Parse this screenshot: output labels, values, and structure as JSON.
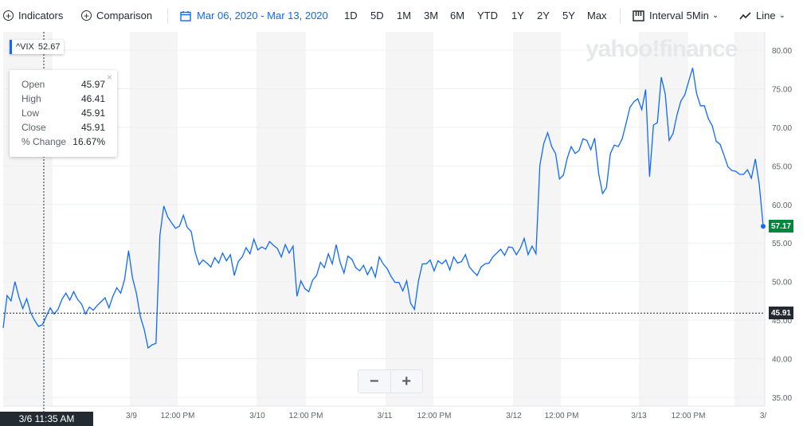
{
  "toolbar": {
    "indicators_label": "Indicators",
    "comparison_label": "Comparison",
    "date_range": "Mar 06, 2020 - Mar 13, 2020",
    "ranges": [
      "1D",
      "5D",
      "1M",
      "3M",
      "6M",
      "YTD",
      "1Y",
      "2Y",
      "5Y",
      "Max"
    ],
    "interval_label": "Interval",
    "interval_value": "5Min",
    "chart_type_label": "Line"
  },
  "symbol": {
    "ticker": "^VIX",
    "value": "52.67"
  },
  "tooltip": {
    "rows": [
      {
        "label": "Open",
        "value": "45.97"
      },
      {
        "label": "High",
        "value": "46.41"
      },
      {
        "label": "Low",
        "value": "45.91"
      },
      {
        "label": "Close",
        "value": "45.91"
      },
      {
        "label": "% Change",
        "value": "16.67%"
      }
    ]
  },
  "watermark": "yahoo!finance",
  "crosshair_time": "3/6 11:35 AM",
  "colors": {
    "line": "#0f69ff",
    "last_badge": "#00873c",
    "cross_badge": "#232a31"
  },
  "chart_data": {
    "type": "line",
    "yticks": [
      "35.00",
      "40.00",
      "45.00",
      "50.00",
      "55.00",
      "60.00",
      "65.00",
      "70.00",
      "75.00",
      "80.00"
    ],
    "ylim": [
      34,
      85
    ],
    "xticks": [
      "3/9",
      "12:00 PM",
      "3/10",
      "12:00 PM",
      "3/11",
      "12:00 PM",
      "3/12",
      "12:00 PM",
      "3/13",
      "12:00 PM",
      "3/"
    ],
    "last_value": "57.17",
    "crosshair_value": "45.91",
    "grid": true,
    "series": [
      {
        "values": [
          44,
          48.2,
          47.5,
          50,
          48,
          46.5,
          47.8,
          46,
          45,
          44.2,
          44.4,
          45.5,
          46.6,
          45.8,
          46.4,
          47.7,
          48.5,
          47.6,
          48.7,
          47.7,
          47.1,
          45.8,
          46.7,
          46.3,
          46.9,
          47.4,
          47.9,
          46.6,
          48.1,
          49.2,
          48.5,
          50.3,
          54,
          50.5,
          48.5,
          45.5,
          43.8,
          41.4,
          41.8,
          42,
          56,
          59.8,
          58.4,
          57.6,
          56.9,
          57.2,
          58.6,
          57,
          56.5,
          53.8,
          52.2,
          52.8,
          52.4,
          51.9,
          53.1,
          52.4,
          53.7,
          52.7,
          53.5,
          50.8,
          52.6,
          53.2,
          54.4,
          53.6,
          55.5,
          54.1,
          54.5,
          54.2,
          55.2,
          54.7,
          54.3,
          53.2,
          54.8,
          53.7,
          54.6,
          48.1,
          50.1,
          49.1,
          48.7,
          50.2,
          50.8,
          52.5,
          51.8,
          53.6,
          52.3,
          54.8,
          52.5,
          51.1,
          53.3,
          52.9,
          51.8,
          51.4,
          52.1,
          50.9,
          51.9,
          50.6,
          53.2,
          52.3,
          51.7,
          50.7,
          49.9,
          49.9,
          48.8,
          50.1,
          47.2,
          46.4,
          50.1,
          52.3,
          52.3,
          52.8,
          51.4,
          52.7,
          52.3,
          52.8,
          51.5,
          53.2,
          52.4,
          52.6,
          53.5,
          51.9,
          51.3,
          50.8,
          51.9,
          52.3,
          52.4,
          53.2,
          53.7,
          54.2,
          53.4,
          54.5,
          54.4,
          53.5,
          54.3,
          55.6,
          53.5,
          54.6,
          53.6,
          65.1,
          67.9,
          69.3,
          67.5,
          66.6,
          63.3,
          63.8,
          66,
          67.5,
          66.6,
          67,
          68.5,
          68.3,
          67.1,
          68.6,
          64,
          61.4,
          62.2,
          66.6,
          67.7,
          67.5,
          68.5,
          70.5,
          72.6,
          73.3,
          73.7,
          72.3,
          74.9,
          63.6,
          70.3,
          70.6,
          76.5,
          74.3,
          68.3,
          69.2,
          71.6,
          73.4,
          74.2,
          76,
          77.7,
          74.4,
          72.8,
          72.8,
          71.1,
          70.2,
          68.2,
          67.8,
          66.4,
          64.9,
          64.4,
          64.3,
          63.9,
          63.9,
          64.5,
          63.4,
          65.9,
          62.6,
          57.17
        ]
      }
    ]
  }
}
